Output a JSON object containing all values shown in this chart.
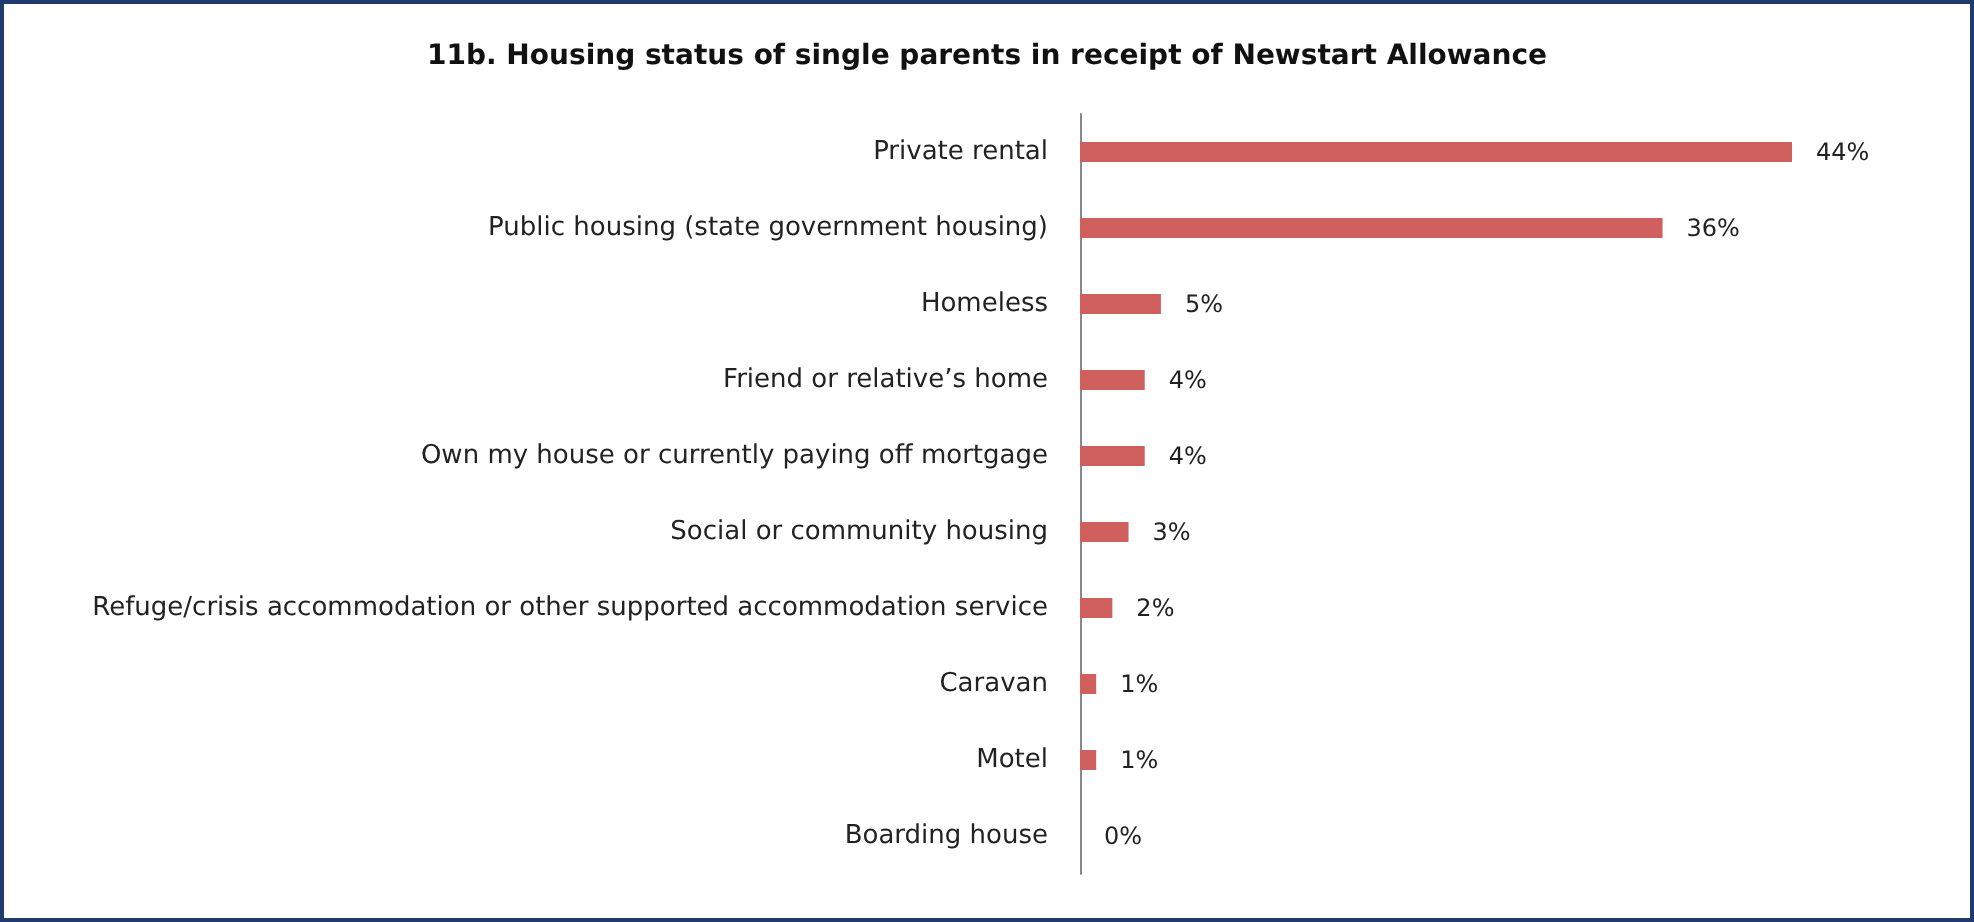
{
  "chart_data": {
    "type": "bar",
    "orientation": "horizontal",
    "title": "11b. Housing status of single parents in receipt of Newstart Allowance",
    "categories": [
      "Private rental",
      "Public housing (state government housing)",
      "Homeless",
      "Friend or relative’s home",
      "Own my house or currently paying off mortgage",
      "Social or community housing",
      "Refuge/crisis accommodation or other supported accommodation service",
      "Caravan",
      "Motel",
      "Boarding house"
    ],
    "values": [
      44,
      36,
      5,
      4,
      4,
      3,
      2,
      1,
      1,
      0
    ],
    "value_labels": [
      "44%",
      "36%",
      "5%",
      "4%",
      "4%",
      "3%",
      "2%",
      "1%",
      "1%",
      "0%"
    ],
    "color": "#d0605e",
    "tick_labels": "y"
  }
}
